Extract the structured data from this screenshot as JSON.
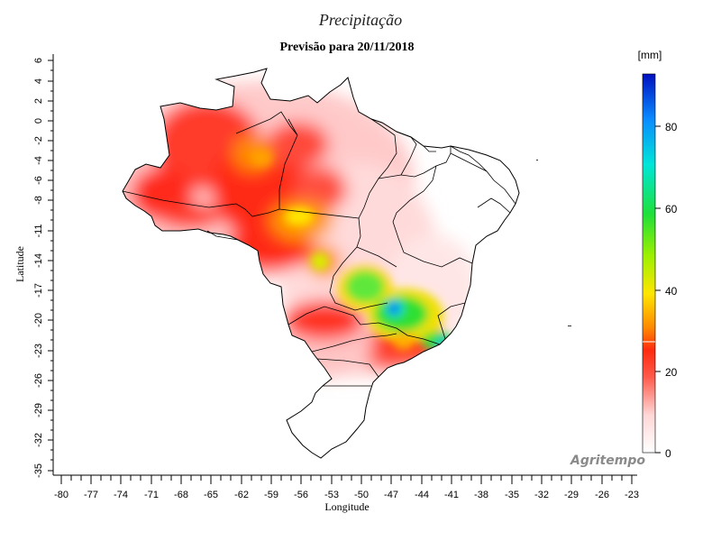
{
  "title": "Precipitação",
  "subtitle": "Previsão para 20/11/2018",
  "watermark": "Agritempo",
  "axes": {
    "xlabel": "Longitude",
    "ylabel": "Latitude",
    "x_ticks": [
      "-80",
      "-77",
      "-74",
      "-71",
      "-68",
      "-65",
      "-62",
      "-59",
      "-56",
      "-53",
      "-50",
      "-47",
      "-44",
      "-41",
      "-38",
      "-35",
      "-32",
      "-29",
      "-26",
      "-23"
    ],
    "y_ticks": [
      "6",
      "4",
      "2",
      "0",
      "-2",
      "-4",
      "-6",
      "-8",
      "-11",
      "-14",
      "-17",
      "-20",
      "-23",
      "-26",
      "-29",
      "-32",
      "-35"
    ]
  },
  "colorbar": {
    "unit": "[mm]",
    "ticks": [
      "80",
      "60",
      "40",
      "20",
      "0"
    ],
    "range": [
      0,
      92
    ],
    "colors": [
      "#ffffff",
      "#ff9a9a",
      "#ff2a1a",
      "#ff6a00",
      "#ffd200",
      "#c8f000",
      "#2fe02f",
      "#00e0c8",
      "#0a90ff",
      "#0010c0"
    ]
  },
  "legend_colors": {
    "border": "#000000",
    "low": "#ffe0e0",
    "moderate": "#ff3322",
    "high": "#22dd22",
    "peak": "#1040ff"
  }
}
